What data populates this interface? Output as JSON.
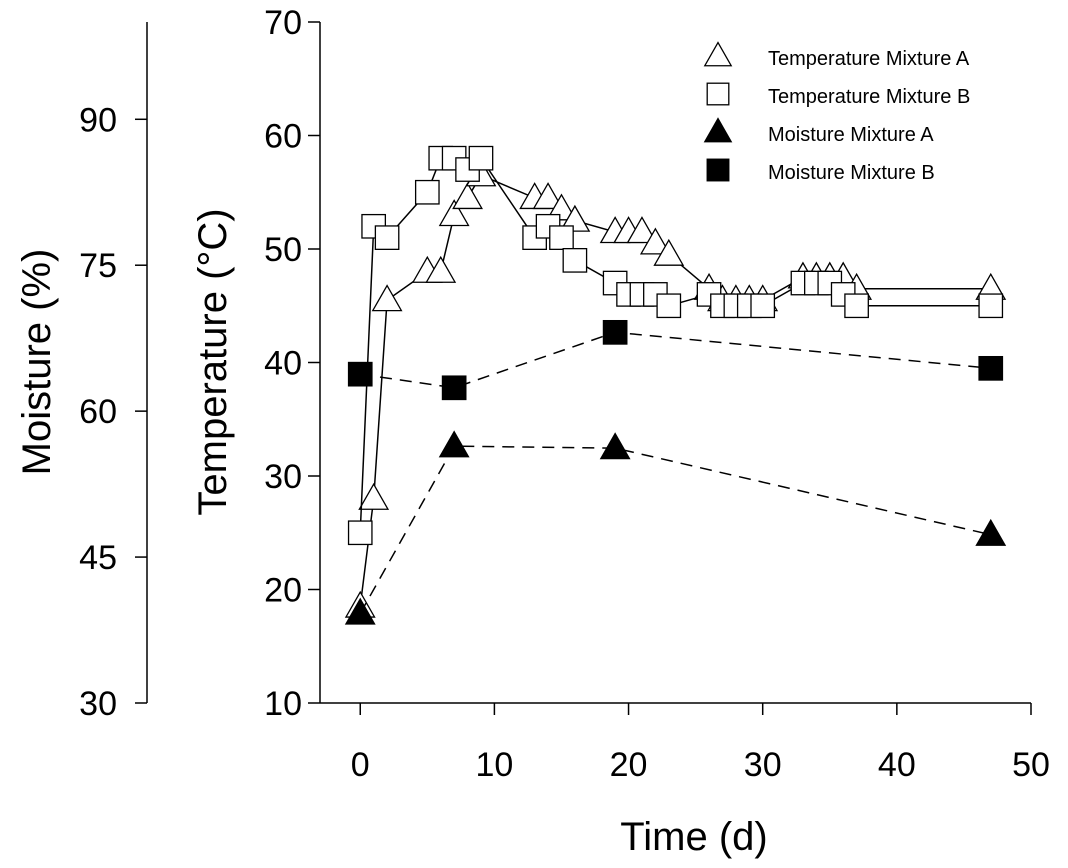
{
  "chart_data": {
    "type": "line",
    "xlabel": "Time (d)",
    "ylabel": "Temperature (°C)",
    "y2label": "Moisture (%)",
    "xlim": [
      -3,
      50
    ],
    "xticks": [
      0,
      10,
      20,
      30,
      40,
      50
    ],
    "ylim": [
      10,
      70
    ],
    "yticks": [
      10,
      20,
      30,
      40,
      50,
      60,
      70
    ],
    "y2lim": [
      30,
      100
    ],
    "y2ticks": [
      30,
      45,
      60,
      75,
      90
    ],
    "legend_position": "top-right",
    "grid": false,
    "series": [
      {
        "name": "Temperature Mixture A",
        "marker": "triangle-open",
        "line": "solid",
        "axis": "left",
        "points": [
          [
            0,
            18.5
          ],
          [
            1,
            28
          ],
          [
            2,
            45.5
          ],
          [
            5,
            48
          ],
          [
            6,
            48
          ],
          [
            7,
            53
          ],
          [
            8,
            54.5
          ],
          [
            9,
            56.5
          ],
          [
            13,
            54.5
          ],
          [
            14,
            54.5
          ],
          [
            15,
            53.5
          ],
          [
            16,
            52.5
          ],
          [
            19,
            51.5
          ],
          [
            20,
            51.5
          ],
          [
            21,
            51.5
          ],
          [
            22,
            50.5
          ],
          [
            23,
            49.5
          ],
          [
            26,
            46.5
          ],
          [
            27,
            45.5
          ],
          [
            28,
            45.5
          ],
          [
            29,
            45.5
          ],
          [
            30,
            45.5
          ],
          [
            33,
            47.5
          ],
          [
            34,
            47.5
          ],
          [
            35,
            47.5
          ],
          [
            36,
            47.5
          ],
          [
            37,
            46.5
          ],
          [
            47,
            46.5
          ]
        ]
      },
      {
        "name": "Temperature Mixture B",
        "marker": "square-open",
        "line": "solid",
        "axis": "left",
        "points": [
          [
            0,
            25
          ],
          [
            1,
            52
          ],
          [
            2,
            51
          ],
          [
            5,
            55
          ],
          [
            6,
            58
          ],
          [
            7,
            58
          ],
          [
            8,
            57
          ],
          [
            9,
            58
          ],
          [
            13,
            51
          ],
          [
            14,
            52
          ],
          [
            15,
            51
          ],
          [
            16,
            49
          ],
          [
            19,
            47
          ],
          [
            20,
            46
          ],
          [
            21,
            46
          ],
          [
            22,
            46
          ],
          [
            23,
            45
          ],
          [
            26,
            46
          ],
          [
            27,
            45
          ],
          [
            28,
            45
          ],
          [
            29,
            45
          ],
          [
            30,
            45
          ],
          [
            33,
            47
          ],
          [
            34,
            47
          ],
          [
            35,
            47
          ],
          [
            36,
            46
          ],
          [
            37,
            45
          ],
          [
            47,
            45
          ]
        ]
      },
      {
        "name": "Moisture Mixture A",
        "marker": "triangle-filled",
        "line": "dashed",
        "axis": "right",
        "points": [
          [
            0,
            39.2
          ],
          [
            7,
            56.4
          ],
          [
            19,
            56.2
          ],
          [
            47,
            47.3
          ]
        ]
      },
      {
        "name": "Moisture Mixture B",
        "marker": "square-filled",
        "line": "dashed",
        "axis": "right",
        "points": [
          [
            0,
            63.8
          ],
          [
            7,
            62.4
          ],
          [
            19,
            68.1
          ],
          [
            47,
            64.4
          ]
        ]
      }
    ]
  }
}
